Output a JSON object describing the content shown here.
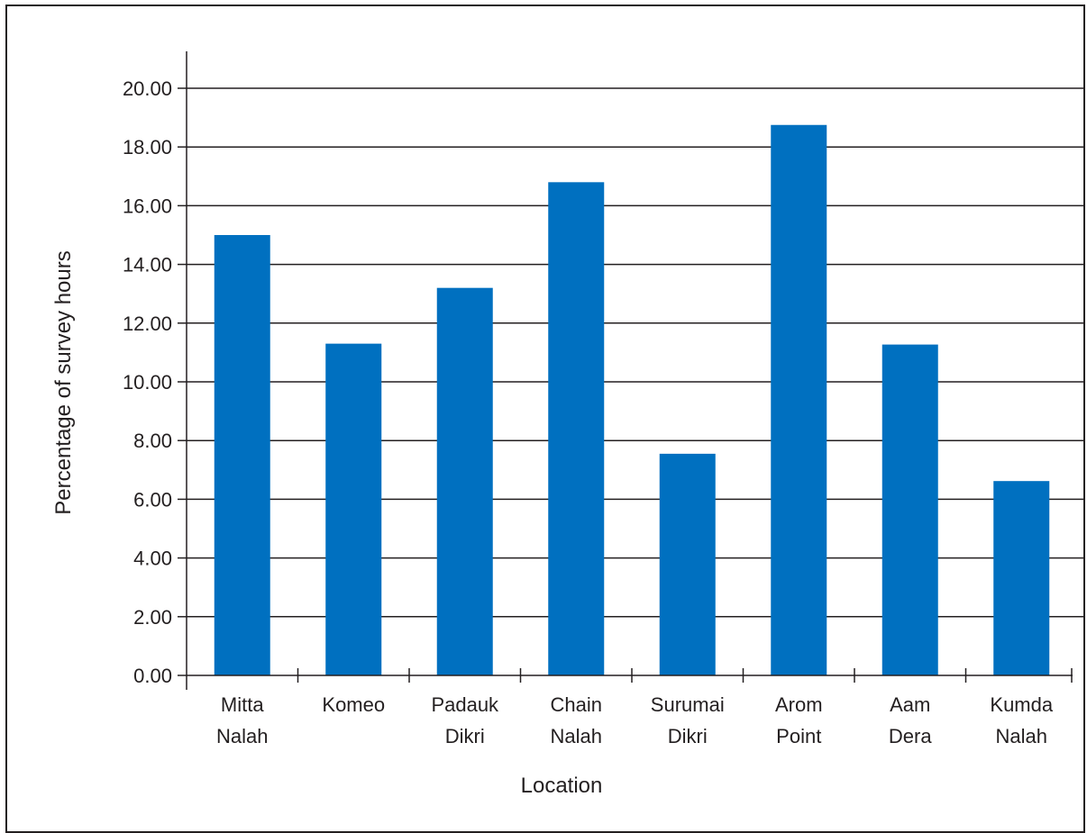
{
  "chart_data": {
    "type": "bar",
    "title": "",
    "xlabel": "Location",
    "ylabel": "Percentage of survey hours",
    "categories": [
      [
        "Mitta",
        "Nalah"
      ],
      [
        "Komeo"
      ],
      [
        "Padauk",
        "Dikri"
      ],
      [
        "Chain",
        "Nalah"
      ],
      [
        "Surumai",
        "Dikri"
      ],
      [
        "Arom",
        "Point"
      ],
      [
        "Aam",
        "Dera"
      ],
      [
        "Kumda",
        "Nalah"
      ]
    ],
    "values": [
      15.0,
      11.3,
      13.2,
      16.8,
      7.55,
      18.75,
      11.27,
      6.62
    ],
    "ylim": [
      0,
      20
    ],
    "yticks": [
      "0.00",
      "2.00",
      "4.00",
      "6.00",
      "8.00",
      "10.00",
      "12.00",
      "14.00",
      "16.00",
      "18.00",
      "20.00"
    ],
    "grid": true,
    "legend": "none",
    "colors": {
      "bar": "#0070c0",
      "axis": "#231f20"
    }
  }
}
